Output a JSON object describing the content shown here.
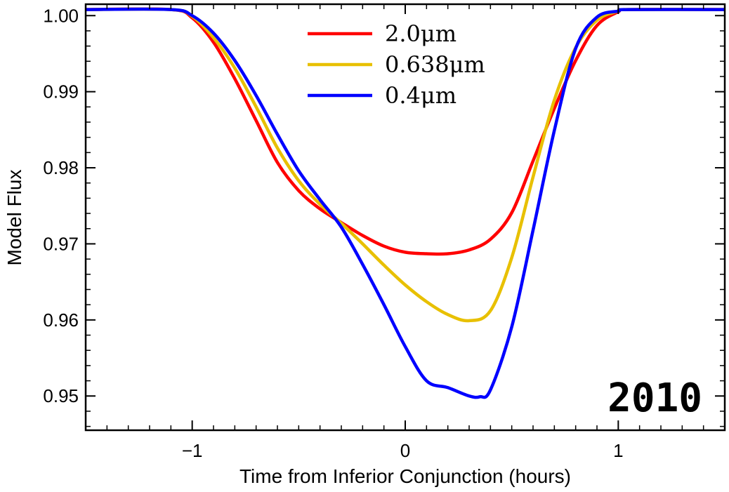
{
  "chart_data": {
    "type": "line",
    "xlabel": "Time from Inferior Conjunction (hours)",
    "ylabel": "Model Flux",
    "xlim": [
      -1.5,
      1.5
    ],
    "ylim": [
      0.9455,
      1.0015
    ],
    "xticks": [
      -1,
      0,
      1
    ],
    "xtick_labels": [
      "−1",
      "0",
      "1"
    ],
    "yticks": [
      0.95,
      0.96,
      0.97,
      0.98,
      0.99,
      1.0
    ],
    "ytick_labels": [
      "0.95",
      "0.96",
      "0.97",
      "0.98",
      "0.99",
      "1.00"
    ],
    "grid": false,
    "legend_position": "top-center",
    "annotation": "2010",
    "series": [
      {
        "name": "2.0μm",
        "color": "#ff0000",
        "x": [
          -1.5,
          -1.1,
          -1.0,
          -0.9,
          -0.8,
          -0.7,
          -0.6,
          -0.5,
          -0.4,
          -0.3,
          -0.2,
          -0.1,
          0.0,
          0.1,
          0.2,
          0.3,
          0.4,
          0.5,
          0.6,
          0.7,
          0.8,
          0.9,
          1.0,
          1.05,
          1.5
        ],
        "y": [
          1.0008,
          1.0008,
          0.9997,
          0.9965,
          0.9917,
          0.9862,
          0.9807,
          0.977,
          0.9746,
          0.9728,
          0.9711,
          0.9697,
          0.9689,
          0.9687,
          0.9687,
          0.9692,
          0.9706,
          0.9741,
          0.9809,
          0.9878,
          0.9941,
          0.9987,
          1.0005,
          1.0008,
          1.0008
        ]
      },
      {
        "name": "0.638μm",
        "color": "#e8c000",
        "x": [
          -1.5,
          -1.1,
          -1.0,
          -0.9,
          -0.8,
          -0.7,
          -0.6,
          -0.5,
          -0.4,
          -0.3,
          -0.2,
          -0.1,
          0.0,
          0.1,
          0.2,
          0.3,
          0.4,
          0.5,
          0.6,
          0.7,
          0.8,
          0.9,
          1.0,
          1.05,
          1.5
        ],
        "y": [
          1.0008,
          1.0008,
          0.9999,
          0.9971,
          0.9931,
          0.988,
          0.9826,
          0.9783,
          0.9752,
          0.9727,
          0.97,
          0.9672,
          0.9646,
          0.9624,
          0.9607,
          0.9599,
          0.9612,
          0.9682,
          0.9788,
          0.9889,
          0.9958,
          0.9994,
          1.0006,
          1.0008,
          1.0008
        ]
      },
      {
        "name": "0.4μm",
        "color": "#0000ff",
        "x": [
          -1.5,
          -1.1,
          -1.0,
          -0.9,
          -0.8,
          -0.7,
          -0.6,
          -0.5,
          -0.4,
          -0.3,
          -0.2,
          -0.1,
          0.0,
          0.1,
          0.2,
          0.3,
          0.35,
          0.4,
          0.5,
          0.6,
          0.7,
          0.8,
          0.9,
          1.0,
          1.05,
          1.5
        ],
        "y": [
          1.0008,
          1.0008,
          1.0,
          0.9977,
          0.9941,
          0.9895,
          0.9844,
          0.9796,
          0.9758,
          0.9722,
          0.9673,
          0.962,
          0.9565,
          0.952,
          0.9511,
          0.95,
          0.9499,
          0.9508,
          0.9591,
          0.9718,
          0.9849,
          0.9957,
          0.9998,
          1.0006,
          1.0008,
          1.0008
        ]
      }
    ]
  }
}
